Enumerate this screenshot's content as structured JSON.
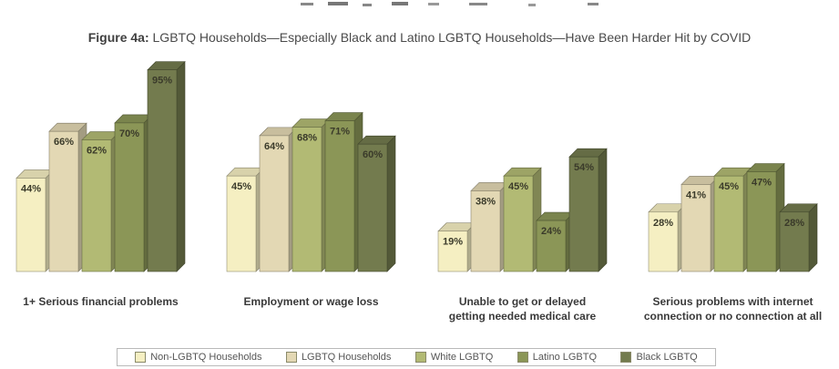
{
  "figure": {
    "title_prefix": "Figure 4a:",
    "title_text": "LGBTQ Households—Especially Black and Latino LGBTQ Households—Have Been Harder Hit by COVID"
  },
  "colors": {
    "non_lgbtq": "#f5efc2",
    "lgbtq": "#e3d8b4",
    "white": "#b2ba74",
    "latino": "#8b9657",
    "black": "#737b4e"
  },
  "chart_data": {
    "type": "bar",
    "title": "LGBTQ Households—Especially Black and Latino LGBTQ Households—Have Been Harder Hit by COVID",
    "categories": [
      "1+ Serious financial problems",
      "Employment or wage loss",
      "Unable to get or delayed getting needed medical care",
      "Serious problems with internet connection or no connection at all"
    ],
    "category_lines": [
      [
        "1+ Serious financial problems"
      ],
      [
        "Employment or wage loss"
      ],
      [
        "Unable to get or delayed",
        "getting needed medical care"
      ],
      [
        "Serious problems with internet",
        "connection or no connection at all"
      ]
    ],
    "series": [
      {
        "name": "Non-LGBTQ Households",
        "values": [
          44,
          45,
          19,
          28
        ],
        "labels": [
          "44%",
          "45%",
          "19%",
          "28%"
        ],
        "color": "#f5efc2"
      },
      {
        "name": "LGBTQ Households",
        "values": [
          66,
          64,
          38,
          41
        ],
        "labels": [
          "66%",
          "64%",
          "38%",
          "41%"
        ],
        "color": "#e3d8b4"
      },
      {
        "name": "White LGBTQ",
        "values": [
          62,
          68,
          45,
          45
        ],
        "labels": [
          "62%",
          "68%",
          "45%",
          "45%"
        ],
        "color": "#b2ba74"
      },
      {
        "name": "Latino LGBTQ",
        "values": [
          70,
          71,
          24,
          47
        ],
        "labels": [
          "70%",
          "71%",
          "24%",
          "47%"
        ],
        "color": "#8b9657"
      },
      {
        "name": "Black LGBTQ",
        "values": [
          95,
          60,
          54,
          28
        ],
        "labels": [
          "95%",
          "60%",
          "54%",
          "28%"
        ],
        "color": "#737b4e"
      }
    ],
    "ylim": [
      0,
      100
    ],
    "legend_position": "bottom",
    "grid": false,
    "style": "3d-bars"
  }
}
